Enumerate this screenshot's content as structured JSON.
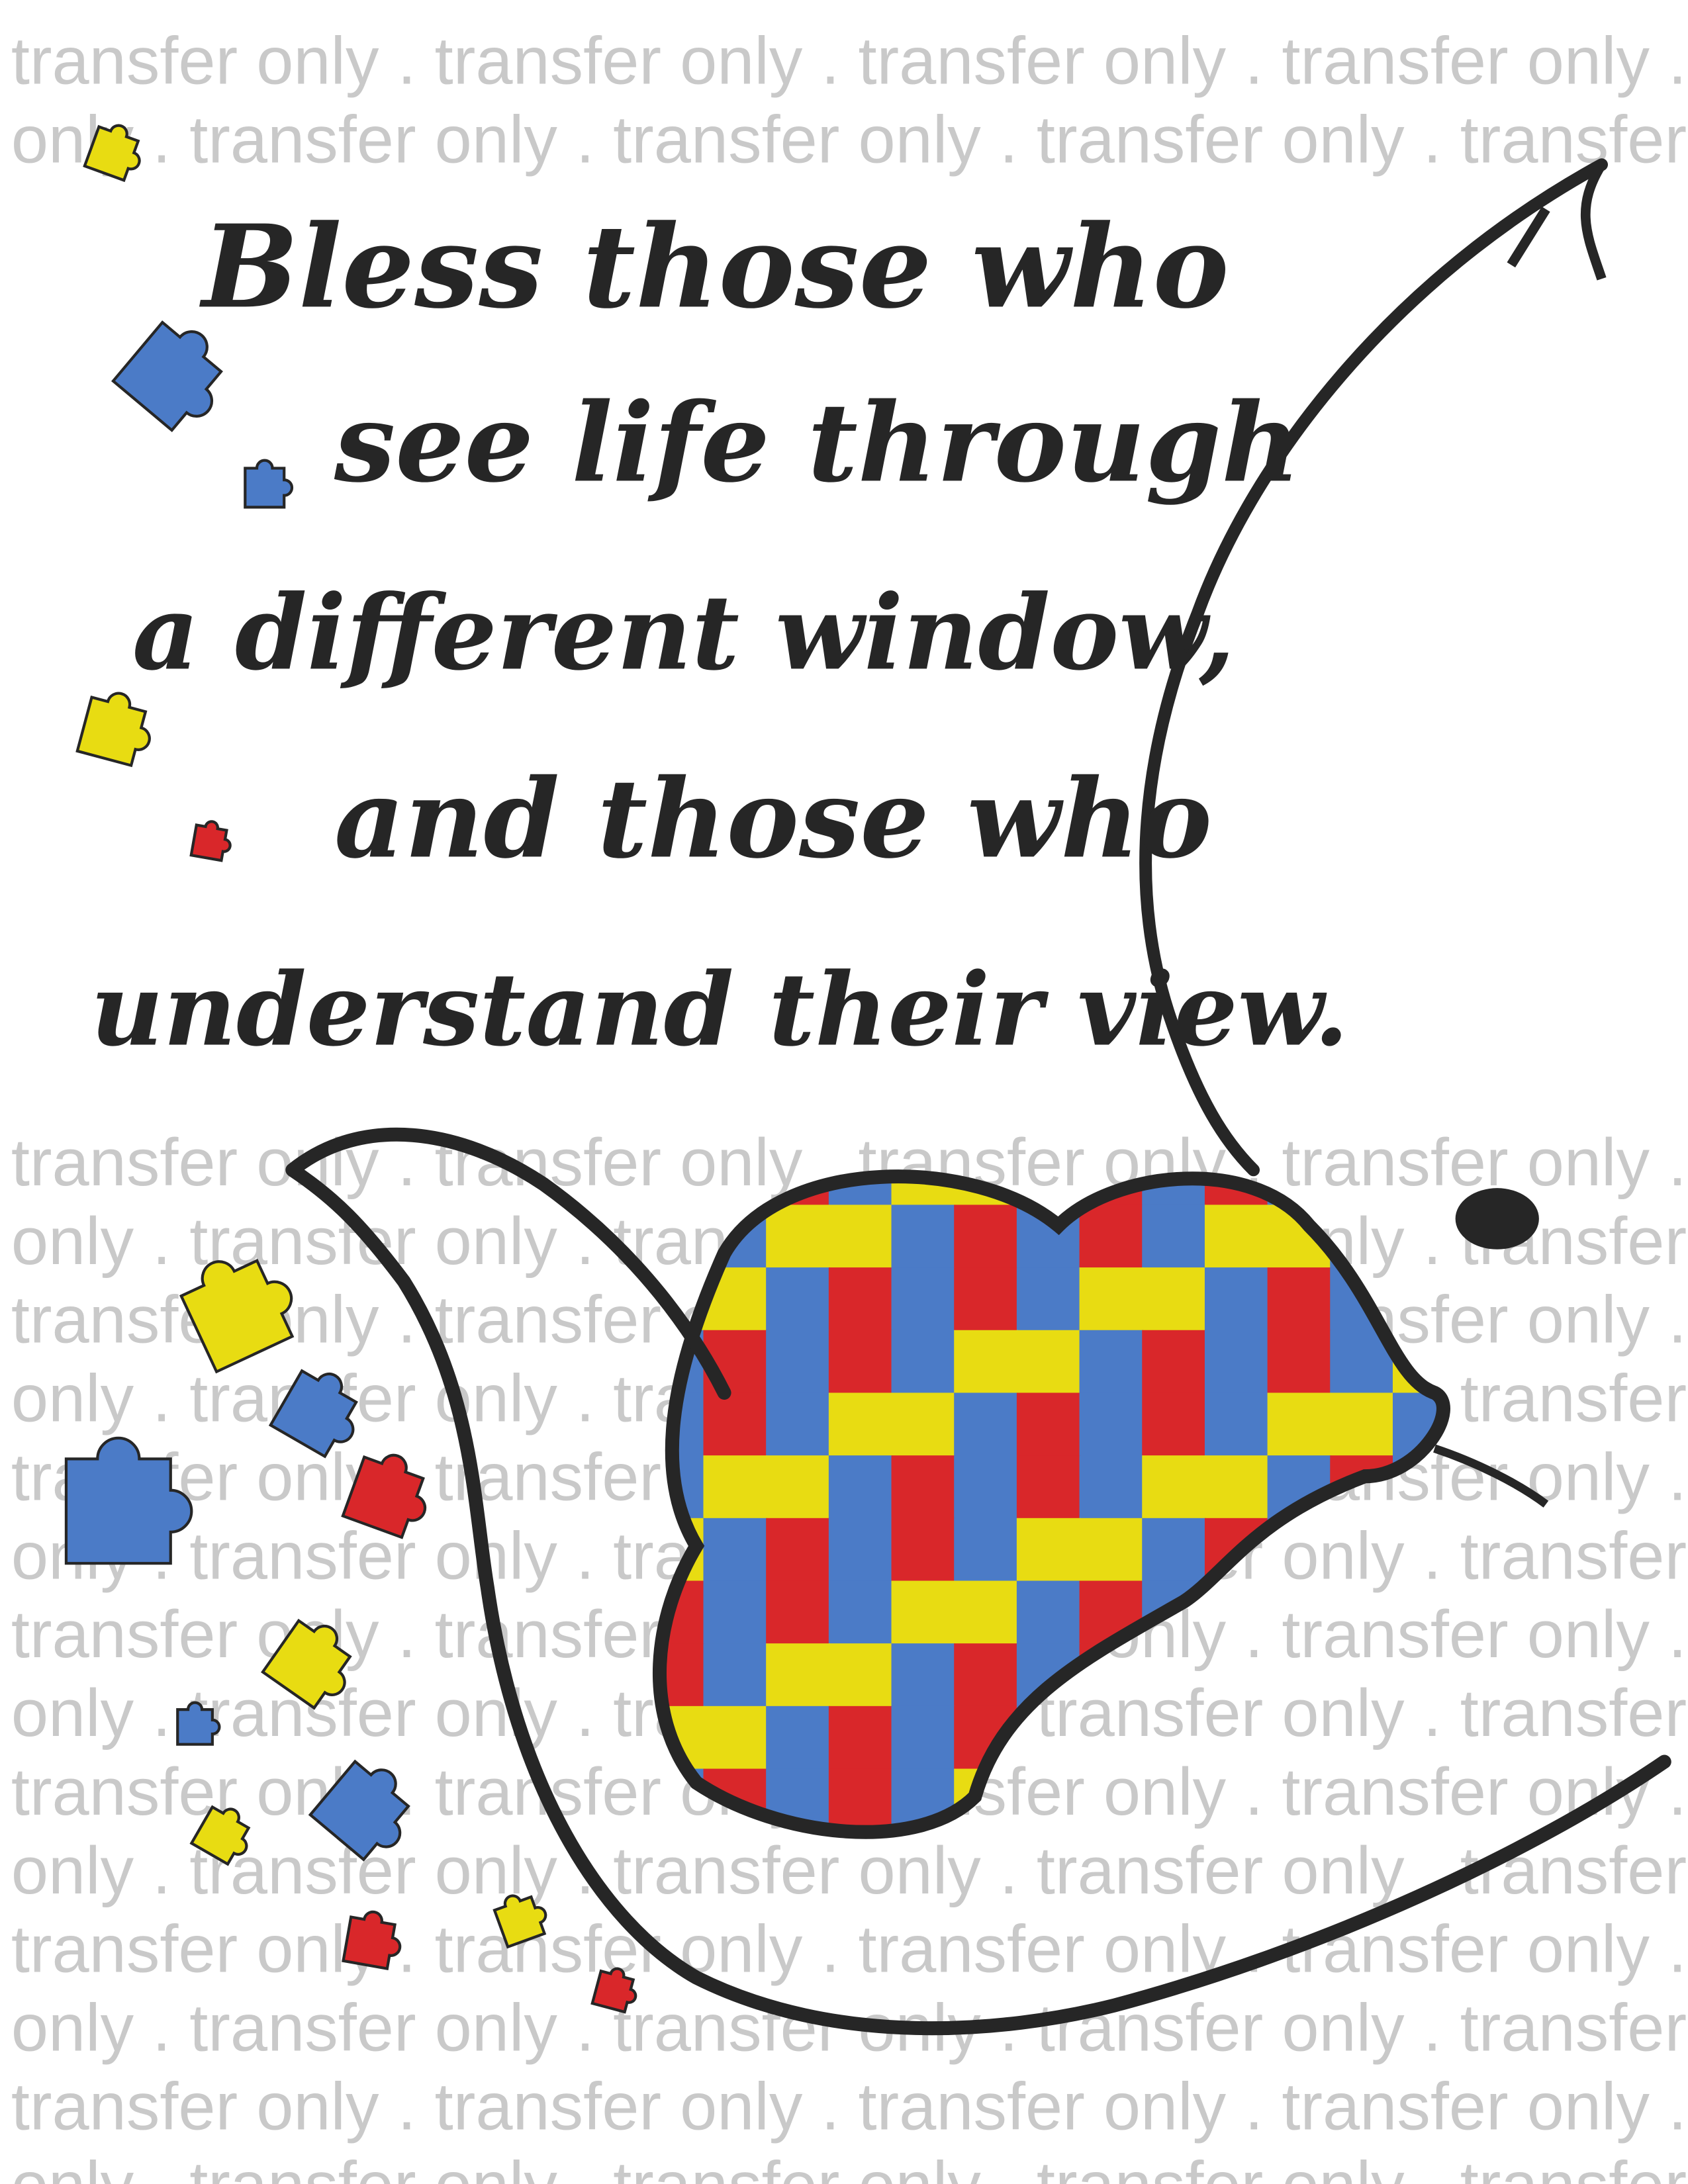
{
  "watermark": {
    "text": "transfer only",
    "separator": " . "
  },
  "quote": {
    "lines": [
      "Bless those who",
      "see life through",
      "a different window,",
      "and those who",
      "understand their view."
    ]
  },
  "artwork": {
    "subject": "elephant with puzzle-piece ear",
    "colors": {
      "ink": "#262626",
      "red": "#d9272a",
      "blue": "#4b7bc7",
      "yellow": "#e8dc12",
      "watermark": "#c9c9c9"
    }
  }
}
